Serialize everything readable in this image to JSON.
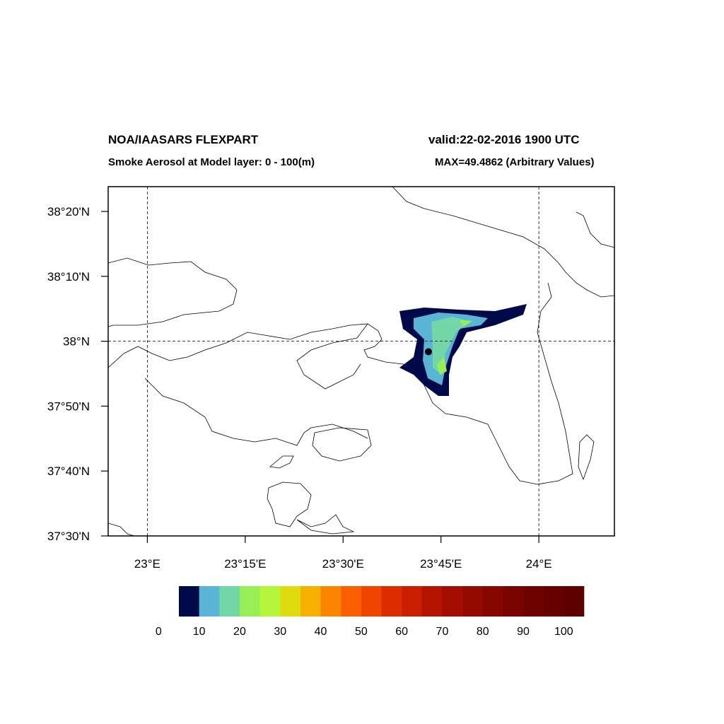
{
  "chart_data": {
    "type": "map",
    "title": "NOA/IAASARS FLEXPART",
    "valid": "valid:22-02-2016 1900 UTC",
    "subtitle": "Smoke Aerosol at Model layer: 0 - 100(m)",
    "max_label": "MAX=49.4862 (Arbitrary Values)",
    "xlim": [
      22.9,
      24.193
    ],
    "ylim": [
      37.5,
      38.397
    ],
    "xticks": [
      {
        "value": 23,
        "label": "23°E"
      },
      {
        "value": 23.25,
        "label": "23°15'E"
      },
      {
        "value": 23.5,
        "label": "23°30'E"
      },
      {
        "value": 23.75,
        "label": "23°45'E"
      },
      {
        "value": 24,
        "label": "24°E"
      }
    ],
    "yticks": [
      {
        "value": 37.5,
        "label": "37°30'N"
      },
      {
        "value": 37.6667,
        "label": "37°40'N"
      },
      {
        "value": 37.8333,
        "label": "37°50'N"
      },
      {
        "value": 38,
        "label": "38°N"
      },
      {
        "value": 38.1667,
        "label": "38°10'N"
      },
      {
        "value": 38.3333,
        "label": "38°20'N"
      }
    ],
    "grid": {
      "lon": [
        23,
        24
      ],
      "lat": [
        38
      ]
    },
    "source": [
      23.718,
      37.973
    ],
    "colorbar": {
      "colors": [
        "#000a4a",
        "#5ab4d6",
        "#72d6a6",
        "#98ee57",
        "#b4f53a",
        "#dedc10",
        "#f5b000",
        "#fb8500",
        "#fb6000",
        "#f04500",
        "#dd2d00",
        "#c91f00",
        "#b51500",
        "#a30e00",
        "#940a00",
        "#860700",
        "#7a0400",
        "#6e0200",
        "#660100",
        "#5e0000"
      ],
      "labels": [
        0,
        10,
        20,
        30,
        40,
        50,
        60,
        70,
        80,
        90,
        100
      ]
    }
  }
}
